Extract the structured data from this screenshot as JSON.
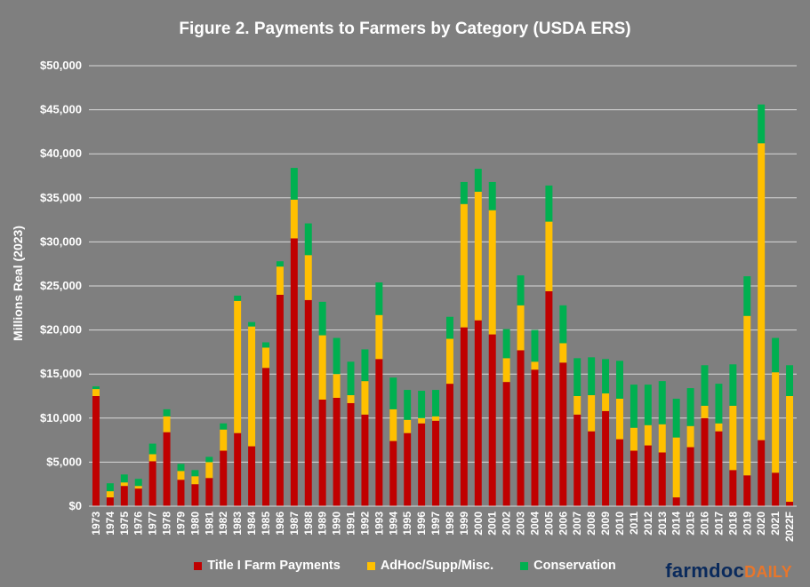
{
  "chart_data": {
    "type": "bar",
    "stacked": true,
    "title": "Figure 2. Payments to Farmers by Category (USDA ERS)",
    "ylabel": "Millions Real (2023)",
    "xlabel": "",
    "ylim": [
      0,
      50000
    ],
    "yticks": [
      "$0",
      "$5,000",
      "$10,000",
      "$15,000",
      "$20,000",
      "$25,000",
      "$30,000",
      "$35,000",
      "$40,000",
      "$45,000",
      "$50,000"
    ],
    "grid": true,
    "legend_position": "bottom",
    "categories": [
      "1973",
      "1974",
      "1975",
      "1976",
      "1977",
      "1978",
      "1979",
      "1980",
      "1981",
      "1982",
      "1983",
      "1984",
      "1985",
      "1986",
      "1987",
      "1988",
      "1989",
      "1990",
      "1991",
      "1992",
      "1993",
      "1994",
      "1995",
      "1996",
      "1997",
      "1998",
      "1999",
      "2000",
      "2001",
      "2002",
      "2003",
      "2004",
      "2005",
      "2006",
      "2007",
      "2008",
      "2009",
      "2010",
      "2011",
      "2012",
      "2013",
      "2014",
      "2015",
      "2016",
      "2017",
      "2018",
      "2019",
      "2020",
      "2021",
      "2022F"
    ],
    "series": [
      {
        "name": "Title I Farm Payments",
        "color": "#c00000",
        "values": [
          12500,
          1000,
          2300,
          2000,
          5100,
          8400,
          3000,
          2500,
          3200,
          6300,
          8300,
          6800,
          15700,
          24000,
          30400,
          23400,
          12100,
          12300,
          11700,
          10400,
          16700,
          7400,
          8300,
          9400,
          9700,
          13900,
          20300,
          21100,
          19500,
          14100,
          17700,
          15500,
          24400,
          16300,
          10400,
          8500,
          10800,
          7600,
          6300,
          6900,
          6100,
          1000,
          6700,
          10000,
          8500,
          4100,
          3500,
          7500,
          3800,
          500
        ]
      },
      {
        "name": "AdHoc/Supp/Misc.",
        "color": "#ffc000",
        "values": [
          800,
          700,
          400,
          300,
          800,
          1800,
          1000,
          900,
          1800,
          2400,
          15000,
          13600,
          2300,
          3200,
          4400,
          5100,
          7300,
          2700,
          900,
          3800,
          5000,
          3600,
          1500,
          600,
          500,
          5100,
          14000,
          14600,
          14100,
          2700,
          5100,
          900,
          7900,
          2200,
          2100,
          4100,
          2000,
          4600,
          2600,
          2300,
          3200,
          6800,
          2400,
          1400,
          900,
          7300,
          18100,
          33700,
          11400,
          12000
        ]
      },
      {
        "name": "Conservation",
        "color": "#00b050",
        "values": [
          300,
          900,
          900,
          800,
          1200,
          800,
          800,
          700,
          600,
          700,
          600,
          500,
          600,
          600,
          3600,
          3600,
          3800,
          4100,
          3800,
          3600,
          3700,
          3600,
          3400,
          3100,
          3000,
          2500,
          2500,
          2600,
          3200,
          3300,
          3400,
          3600,
          4100,
          4300,
          4300,
          4300,
          3900,
          4300,
          4900,
          4600,
          4900,
          4400,
          4300,
          4600,
          4500,
          4700,
          4500,
          4400,
          3900,
          3500
        ]
      }
    ]
  },
  "brand": {
    "part1": "farmdoc",
    "part2": "DAILY"
  }
}
